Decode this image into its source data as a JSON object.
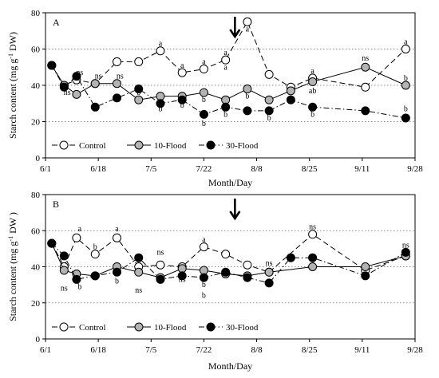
{
  "chart_data": [
    {
      "type": "line",
      "panel_label": "A",
      "xlabel": "Month/Day",
      "ylabel": "Starch content (mg g-1 DW)",
      "ylabel_parts": [
        "Starch content (mg g",
        "-1",
        " DW)"
      ],
      "x_tick_labels": [
        "6/1",
        "6/18",
        "7/5",
        "7/22",
        "8/8",
        "8/25",
        "9/11",
        "9/28"
      ],
      "x_tick_dates": [
        "2000-06-01",
        "2000-06-18",
        "2000-07-05",
        "2000-07-22",
        "2000-08-08",
        "2000-08-25",
        "2000-09-11",
        "2000-09-28"
      ],
      "xlim": [
        "2000-06-01",
        "2000-09-28"
      ],
      "ylim": [
        0,
        80
      ],
      "y_ticks": [
        0,
        20,
        40,
        60,
        80
      ],
      "grid": "horizontal dotted at 20, 40, 60",
      "legend_position": "bottom-left",
      "arrow_date": "2000-08-01",
      "series": [
        {
          "name": "Control",
          "style": "dashed, open circles",
          "x": [
            "2000-06-03",
            "2000-06-07",
            "2000-06-11",
            "2000-06-17",
            "2000-06-24",
            "2000-07-01",
            "2000-07-08",
            "2000-07-15",
            "2000-07-22",
            "2000-07-29",
            "2000-08-05",
            "2000-08-12",
            "2000-08-19",
            "2000-08-26",
            "2000-09-12",
            "2000-09-25"
          ],
          "y": [
            51,
            40,
            43,
            41,
            53,
            53,
            59,
            47,
            49,
            54,
            75,
            46,
            39,
            44,
            39,
            60
          ]
        },
        {
          "name": "10-Flood",
          "style": "solid, grey circles",
          "x": [
            "2000-06-03",
            "2000-06-07",
            "2000-06-11",
            "2000-06-17",
            "2000-06-24",
            "2000-07-01",
            "2000-07-08",
            "2000-07-15",
            "2000-07-22",
            "2000-07-29",
            "2000-08-05",
            "2000-08-12",
            "2000-08-19",
            "2000-08-26",
            "2000-09-12",
            "2000-09-25"
          ],
          "y": [
            51,
            40,
            35,
            41,
            41,
            32,
            34,
            34,
            36,
            32,
            38,
            32,
            37,
            42,
            50,
            40
          ]
        },
        {
          "name": "30-Flood",
          "style": "dash-dot, black circles",
          "x": [
            "2000-06-03",
            "2000-06-07",
            "2000-06-11",
            "2000-06-17",
            "2000-06-24",
            "2000-07-01",
            "2000-07-08",
            "2000-07-15",
            "2000-07-22",
            "2000-07-29",
            "2000-08-05",
            "2000-08-12",
            "2000-08-19",
            "2000-08-26",
            "2000-09-12",
            "2000-09-25"
          ],
          "y": [
            51,
            39,
            45,
            28,
            33,
            38,
            30,
            32,
            24,
            28,
            26,
            26,
            32,
            28,
            26,
            22
          ]
        }
      ],
      "annotations": [
        {
          "text": "ns",
          "x": "2000-06-08",
          "y": 36
        },
        {
          "text": "ns",
          "x": "2000-06-12",
          "y": 47
        },
        {
          "text": "ns",
          "x": "2000-06-18",
          "y": 45
        },
        {
          "text": "ns",
          "x": "2000-06-25",
          "y": 45
        },
        {
          "text": "a",
          "x": "2000-07-08",
          "y": 63
        },
        {
          "text": "b",
          "x": "2000-07-01",
          "y": 36
        },
        {
          "text": "b",
          "x": "2000-07-08",
          "y": 27
        },
        {
          "text": "a",
          "x": "2000-07-15",
          "y": 51
        },
        {
          "text": "b",
          "x": "2000-07-15",
          "y": 29
        },
        {
          "text": "a",
          "x": "2000-07-22",
          "y": 53
        },
        {
          "text": "b",
          "x": "2000-07-22",
          "y": 32
        },
        {
          "text": "b",
          "x": "2000-07-22",
          "y": 19
        },
        {
          "text": "a",
          "x": "2000-07-29",
          "y": 58
        },
        {
          "text": "a",
          "x": "2000-07-29",
          "y": 50
        },
        {
          "text": "b",
          "x": "2000-07-29",
          "y": 24
        },
        {
          "text": "a",
          "x": "2000-08-05",
          "y": 71
        },
        {
          "text": "b",
          "x": "2000-08-05",
          "y": 34
        },
        {
          "text": "b",
          "x": "2000-08-12",
          "y": 22
        },
        {
          "text": "a",
          "x": "2000-08-26",
          "y": 48
        },
        {
          "text": "ab",
          "x": "2000-08-26",
          "y": 37
        },
        {
          "text": "b",
          "x": "2000-08-26",
          "y": 24
        },
        {
          "text": "ns",
          "x": "2000-09-12",
          "y": 55
        },
        {
          "text": "a",
          "x": "2000-09-25",
          "y": 64
        },
        {
          "text": "b",
          "x": "2000-09-25",
          "y": 44
        },
        {
          "text": "b",
          "x": "2000-09-25",
          "y": 27
        }
      ]
    },
    {
      "type": "line",
      "panel_label": "B",
      "xlabel": "Month/Day",
      "ylabel": "Starch content (mg g-1 DW)",
      "ylabel_parts": [
        "Starch content (mg g",
        "-1",
        " DW )"
      ],
      "x_tick_labels": [
        "6/1",
        "6/18",
        "7/5",
        "7/22",
        "8/8",
        "8/25",
        "9/11",
        "9/28"
      ],
      "x_tick_dates": [
        "2000-06-01",
        "2000-06-18",
        "2000-07-05",
        "2000-07-22",
        "2000-08-08",
        "2000-08-25",
        "2000-09-11",
        "2000-09-28"
      ],
      "xlim": [
        "2000-06-01",
        "2000-09-28"
      ],
      "ylim": [
        0,
        80
      ],
      "y_ticks": [
        0,
        20,
        40,
        60,
        80
      ],
      "grid": "horizontal dotted at 20, 40, 60",
      "legend_position": "bottom-left",
      "arrow_date": "2000-08-01",
      "series": [
        {
          "name": "Control",
          "style": "dashed, open circles",
          "x": [
            "2000-06-03",
            "2000-06-07",
            "2000-06-11",
            "2000-06-17",
            "2000-06-24",
            "2000-07-01",
            "2000-07-08",
            "2000-07-15",
            "2000-07-22",
            "2000-07-29",
            "2000-08-05",
            "2000-08-12",
            "2000-08-26",
            "2000-09-12",
            "2000-09-25"
          ],
          "y": [
            53,
            40,
            56,
            47,
            56,
            40,
            41,
            40,
            51,
            47,
            41,
            37,
            58,
            38,
            46
          ]
        },
        {
          "name": "10-Flood",
          "style": "solid, grey circles",
          "x": [
            "2000-06-03",
            "2000-06-07",
            "2000-06-11",
            "2000-06-17",
            "2000-06-24",
            "2000-07-01",
            "2000-07-08",
            "2000-07-15",
            "2000-07-22",
            "2000-07-29",
            "2000-08-05",
            "2000-08-12",
            "2000-08-26",
            "2000-09-12",
            "2000-09-25"
          ],
          "y": [
            53,
            38,
            36,
            35,
            40,
            37,
            34,
            39,
            38,
            36,
            35,
            37,
            40,
            40,
            46
          ]
        },
        {
          "name": "30-Flood",
          "style": "dash-dot, black circles",
          "x": [
            "2000-06-03",
            "2000-06-07",
            "2000-06-11",
            "2000-06-17",
            "2000-06-24",
            "2000-07-01",
            "2000-07-08",
            "2000-07-15",
            "2000-07-22",
            "2000-07-29",
            "2000-08-05",
            "2000-08-12",
            "2000-08-19",
            "2000-08-26",
            "2000-09-12",
            "2000-09-25"
          ],
          "y": [
            53,
            46,
            33,
            35,
            37,
            45,
            33,
            35,
            34,
            37,
            34,
            31,
            45,
            45,
            35,
            48
          ]
        }
      ],
      "annotations": [
        {
          "text": "a",
          "x": "2000-06-12",
          "y": 61
        },
        {
          "text": "ns",
          "x": "2000-06-07",
          "y": 28
        },
        {
          "text": "b",
          "x": "2000-06-12",
          "y": 29
        },
        {
          "text": "b",
          "x": "2000-06-17",
          "y": 51
        },
        {
          "text": "a",
          "x": "2000-06-24",
          "y": 61
        },
        {
          "text": "b",
          "x": "2000-06-24",
          "y": 32
        },
        {
          "text": "ns",
          "x": "2000-07-08",
          "y": 48
        },
        {
          "text": "ns",
          "x": "2000-07-01",
          "y": 27
        },
        {
          "text": "ns",
          "x": "2000-07-15",
          "y": 33
        },
        {
          "text": "a",
          "x": "2000-07-22",
          "y": 55
        },
        {
          "text": "b",
          "x": "2000-07-22",
          "y": 30
        },
        {
          "text": "b",
          "x": "2000-07-22",
          "y": 24
        },
        {
          "text": "ns",
          "x": "2000-08-12",
          "y": 42
        },
        {
          "text": "ns",
          "x": "2000-08-26",
          "y": 62
        },
        {
          "text": "ns",
          "x": "2000-09-25",
          "y": 52
        }
      ]
    }
  ]
}
